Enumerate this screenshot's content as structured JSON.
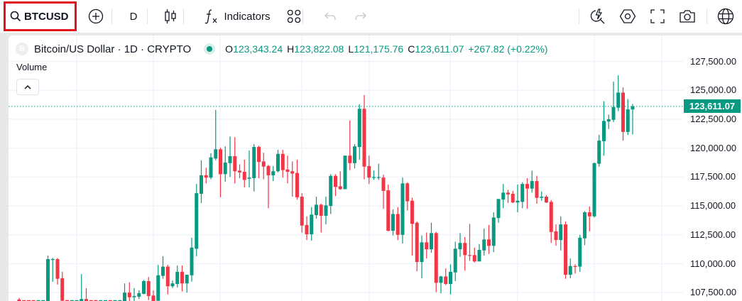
{
  "toolbar": {
    "symbol": "BTCUSD",
    "interval": "D",
    "indicators_label": "Indicators"
  },
  "legend": {
    "coin_letter": "B",
    "title": "Bitcoin/US Dollar · 1D · CRYPTO",
    "open_label": "O",
    "open": "123,343.24",
    "high_label": "H",
    "high": "123,822.08",
    "low_label": "L",
    "low": "121,175.76",
    "close_label": "C",
    "close": "123,611.07",
    "change": "+267.82 (+0.22%)"
  },
  "volume_label": "Volume",
  "colors": {
    "up": "#089981",
    "down": "#f23645",
    "accent": "#089981",
    "highlight_box": "#e3131b"
  },
  "chart_data": {
    "type": "candlestick",
    "symbol": "BTCUSD",
    "interval": "1D",
    "y_ticks": [
      127500,
      125000,
      122500,
      120000,
      117500,
      115000,
      112500,
      110000,
      107500
    ],
    "y_tick_labels": [
      "127,500.00",
      "125,000.00",
      "122,500.00",
      "120,000.00",
      "117,500.00",
      "115,000.00",
      "112,500.00",
      "110,000.00",
      "107,500.00"
    ],
    "last_price": 123611.07,
    "last_price_label": "123,611.07",
    "ohlc_fields": [
      "open",
      "high",
      "low",
      "close"
    ],
    "candles": [
      [
        106900,
        107050,
        106000,
        106500
      ],
      [
        106500,
        106600,
        105800,
        106200
      ],
      [
        106200,
        106600,
        105500,
        105900
      ],
      [
        105900,
        106300,
        105200,
        105600
      ],
      [
        105600,
        106500,
        105300,
        106300
      ],
      [
        106300,
        106600,
        105900,
        106400
      ],
      [
        106400,
        110700,
        106200,
        110400
      ],
      [
        110350,
        110500,
        108450,
        110400
      ],
      [
        110400,
        110500,
        108200,
        108700
      ],
      [
        108750,
        109300,
        106500,
        106800
      ],
      [
        106600,
        106650,
        105500,
        105800
      ],
      [
        105800,
        106300,
        105200,
        106100
      ],
      [
        106100,
        106500,
        105700,
        106500
      ],
      [
        106500,
        109100,
        106000,
        106950
      ],
      [
        106950,
        107900,
        106200,
        106500
      ],
      [
        106500,
        106650,
        105800,
        106000
      ],
      [
        106000,
        106400,
        105400,
        105700
      ],
      [
        105700,
        106200,
        105300,
        106100
      ],
      [
        106100,
        106600,
        105800,
        106400
      ],
      [
        106400,
        106650,
        105900,
        106200
      ],
      [
        106200,
        106600,
        105700,
        106500
      ],
      [
        106500,
        106650,
        106000,
        106600
      ],
      [
        106600,
        108300,
        106500,
        107500
      ],
      [
        107500,
        108400,
        106700,
        107100
      ],
      [
        107100,
        107900,
        106700,
        107200
      ],
      [
        107150,
        107700,
        106950,
        107450
      ],
      [
        107400,
        108600,
        107350,
        108500
      ],
      [
        108500,
        108850,
        106850,
        107200
      ],
      [
        107250,
        107700,
        106500,
        106700
      ],
      [
        106800,
        109900,
        106500,
        109000
      ],
      [
        108950,
        110650,
        108700,
        109750
      ],
      [
        109750,
        109900,
        107350,
        108050
      ],
      [
        108050,
        108550,
        107900,
        108300
      ],
      [
        108250,
        109850,
        107950,
        109300
      ],
      [
        109300,
        109850,
        107600,
        108300
      ],
      [
        108300,
        109050,
        107500,
        109050
      ],
      [
        109000,
        112250,
        108450,
        111400
      ],
      [
        111300,
        116900,
        110650,
        116100
      ],
      [
        116050,
        118950,
        115250,
        117650
      ],
      [
        117650,
        118300,
        116950,
        117450
      ],
      [
        117450,
        119550,
        117300,
        119200
      ],
      [
        119100,
        123300,
        118950,
        119900
      ],
      [
        119900,
        120050,
        115750,
        117750
      ],
      [
        117750,
        120150,
        117100,
        118750
      ],
      [
        118700,
        121000,
        117500,
        119300
      ],
      [
        119300,
        120950,
        116950,
        118000
      ],
      [
        118050,
        118600,
        117400,
        117900
      ],
      [
        117950,
        119000,
        116600,
        117250
      ],
      [
        117350,
        119800,
        116600,
        117450
      ],
      [
        117400,
        120350,
        116250,
        120100
      ],
      [
        120100,
        120200,
        117400,
        118800
      ],
      [
        118850,
        119600,
        117300,
        118400
      ],
      [
        118450,
        118550,
        114800,
        117650
      ],
      [
        117650,
        118450,
        117150,
        118000
      ],
      [
        118000,
        119850,
        117900,
        119500
      ],
      [
        119500,
        119850,
        117450,
        118100
      ],
      [
        118150,
        119350,
        116950,
        117950
      ],
      [
        118000,
        118850,
        115800,
        117800
      ],
      [
        117850,
        119000,
        115550,
        115750
      ],
      [
        115800,
        116100,
        112700,
        113300
      ],
      [
        113350,
        114100,
        112050,
        112550
      ],
      [
        112550,
        114900,
        112000,
        114250
      ],
      [
        114200,
        115800,
        113900,
        115100
      ],
      [
        115100,
        115200,
        112700,
        114150
      ],
      [
        114150,
        115800,
        113400,
        115050
      ],
      [
        115000,
        117750,
        114300,
        117600
      ],
      [
        117600,
        117750,
        115850,
        116650
      ],
      [
        116700,
        118000,
        116400,
        116450
      ],
      [
        116450,
        119350,
        116450,
        119350
      ],
      [
        119350,
        122400,
        118100,
        118700
      ],
      [
        118700,
        120350,
        118250,
        120150
      ],
      [
        120100,
        123800,
        119000,
        123400
      ],
      [
        123400,
        124600,
        117300,
        118400
      ],
      [
        118450,
        119350,
        116900,
        117450
      ],
      [
        117450,
        118050,
        117250,
        117500
      ],
      [
        117450,
        118650,
        117250,
        117500
      ],
      [
        117450,
        117700,
        114750,
        116300
      ],
      [
        116350,
        116850,
        112800,
        112850
      ],
      [
        112850,
        114700,
        112450,
        114300
      ],
      [
        114300,
        114900,
        112050,
        112500
      ],
      [
        112500,
        117450,
        111750,
        116950
      ],
      [
        116950,
        117050,
        114600,
        115400
      ],
      [
        115450,
        115700,
        110700,
        113450
      ],
      [
        113550,
        113650,
        109350,
        110150
      ],
      [
        110150,
        112450,
        108750,
        111850
      ],
      [
        111850,
        112700,
        110450,
        111250
      ],
      [
        111250,
        113550,
        110950,
        112650
      ],
      [
        112650,
        112750,
        107550,
        108350
      ],
      [
        108350,
        108950,
        107450,
        108900
      ],
      [
        108900,
        109600,
        108150,
        108250
      ],
      [
        108250,
        109950,
        107350,
        109300
      ],
      [
        109250,
        111900,
        108500,
        111300
      ],
      [
        111250,
        112650,
        110600,
        111800
      ],
      [
        111800,
        112300,
        109400,
        110750
      ],
      [
        110750,
        113450,
        110250,
        110700
      ],
      [
        110750,
        111400,
        110100,
        110200
      ],
      [
        110200,
        111700,
        110200,
        111200
      ],
      [
        111150,
        113050,
        110700,
        112100
      ],
      [
        112100,
        113350,
        110850,
        111550
      ],
      [
        111550,
        114450,
        111000,
        114000
      ],
      [
        113950,
        115600,
        113550,
        115600
      ],
      [
        115550,
        116900,
        114800,
        116150
      ],
      [
        116150,
        116400,
        115250,
        116000
      ],
      [
        116050,
        116300,
        115250,
        115300
      ],
      [
        115300,
        116850,
        114450,
        115450
      ],
      [
        115350,
        117050,
        114800,
        116900
      ],
      [
        116900,
        117400,
        114750,
        116500
      ],
      [
        116500,
        118050,
        116150,
        117150
      ],
      [
        117150,
        117600,
        115200,
        115700
      ],
      [
        115700,
        116250,
        115450,
        115800
      ],
      [
        115800,
        115950,
        115250,
        115300
      ],
      [
        115350,
        115500,
        111800,
        112750
      ],
      [
        112800,
        113400,
        111550,
        112050
      ],
      [
        112050,
        114100,
        111150,
        113400
      ],
      [
        113400,
        113650,
        108700,
        109050
      ],
      [
        109050,
        110450,
        108750,
        109800
      ],
      [
        109800,
        109950,
        109150,
        109750
      ],
      [
        109750,
        112500,
        109300,
        112250
      ],
      [
        112200,
        114550,
        111600,
        114450
      ],
      [
        114450,
        114950,
        112800,
        114100
      ],
      [
        114100,
        118750,
        114000,
        118700
      ],
      [
        118650,
        121150,
        118400,
        120650
      ],
      [
        120600,
        124050,
        119350,
        122350
      ],
      [
        122300,
        122900,
        121650,
        122500
      ],
      [
        122450,
        125750,
        122250,
        123550
      ],
      [
        123500,
        126300,
        123200,
        124800
      ],
      [
        124800,
        125250,
        120650,
        121400
      ],
      [
        121400,
        124250,
        121150,
        123350
      ],
      [
        123343.24,
        123822.08,
        121175.76,
        123611.07
      ]
    ]
  }
}
